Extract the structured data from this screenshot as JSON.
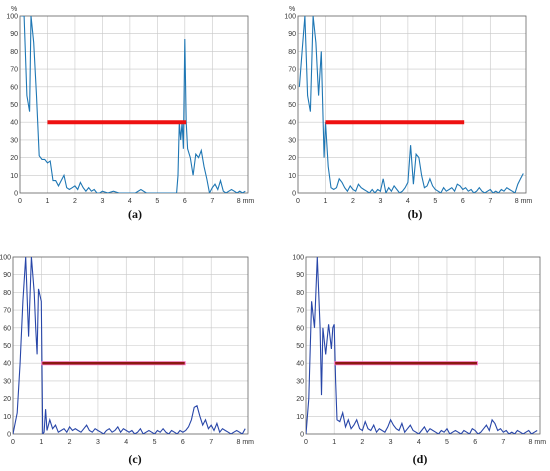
{
  "chart_data": [
    {
      "type": "line",
      "caption": "(a)",
      "ylabel": "%",
      "xunit": "8 mm",
      "xlim": [
        0,
        8.3
      ],
      "ylim": [
        0,
        100
      ],
      "xticks": [
        0,
        1,
        2,
        3,
        4,
        5,
        6,
        7
      ],
      "yticks": [
        0,
        10,
        20,
        30,
        40,
        50,
        60,
        70,
        80,
        90,
        100
      ],
      "grid": true,
      "colors": {
        "signal": "#1f77b4",
        "gate": "#ee1111",
        "gate_inner": "#ee1111"
      },
      "gate": {
        "x": [
          1.0,
          6.05
        ],
        "y": 40
      },
      "series": [
        {
          "x": [
            0.05,
            0.15,
            0.25,
            0.35,
            0.4,
            0.5,
            0.6,
            0.7,
            0.8,
            0.9,
            1.0,
            1.1,
            1.2,
            1.3,
            1.4,
            1.5,
            1.6,
            1.7,
            1.8,
            1.9,
            2.0,
            2.1,
            2.2,
            2.3,
            2.4,
            2.5,
            2.6,
            2.7,
            2.8,
            2.9,
            3.0,
            3.2,
            3.4,
            3.6,
            3.8,
            4.0,
            4.2,
            4.4,
            4.6,
            4.8,
            5.0,
            5.2,
            5.4,
            5.6,
            5.7,
            5.75,
            5.8,
            5.85,
            5.9,
            5.95,
            6.0,
            6.05,
            6.1,
            6.2,
            6.3,
            6.4,
            6.5,
            6.6,
            6.7,
            6.8,
            6.9,
            7.0,
            7.1,
            7.2,
            7.3,
            7.4,
            7.5,
            7.6,
            7.7,
            7.8,
            7.9,
            8.0,
            8.1,
            8.2
          ],
          "y": [
            100,
            100,
            55,
            46,
            100,
            85,
            55,
            21,
            19,
            19,
            17,
            18,
            7,
            7,
            4,
            7,
            10,
            3,
            2,
            3,
            4,
            2,
            6,
            3,
            1,
            3,
            1,
            2,
            0,
            0,
            1,
            0,
            1,
            0,
            0,
            0,
            0,
            2,
            0,
            0,
            0,
            0,
            0,
            0,
            0,
            10,
            40,
            30,
            40,
            25,
            87,
            40,
            25,
            20,
            10,
            22,
            20,
            24,
            15,
            8,
            0,
            3,
            5,
            2,
            7,
            1,
            0,
            1,
            2,
            1,
            0,
            1,
            0,
            1
          ]
        }
      ]
    },
    {
      "type": "line",
      "caption": "(b)",
      "ylabel": "%",
      "xunit": "8 mm",
      "xlim": [
        0,
        8.3
      ],
      "ylim": [
        0,
        100
      ],
      "xticks": [
        0,
        1,
        2,
        3,
        4,
        5,
        6,
        7
      ],
      "yticks": [
        0,
        10,
        20,
        30,
        40,
        50,
        60,
        70,
        80,
        90,
        100
      ],
      "grid": true,
      "colors": {
        "signal": "#1f77b4",
        "gate": "#ee1111",
        "gate_inner": "#ee1111"
      },
      "gate": {
        "x": [
          1.0,
          6.05
        ],
        "y": 40
      },
      "series": [
        {
          "x": [
            0.05,
            0.15,
            0.25,
            0.35,
            0.45,
            0.55,
            0.65,
            0.75,
            0.85,
            0.95,
            1.0,
            1.1,
            1.2,
            1.3,
            1.4,
            1.5,
            1.6,
            1.7,
            1.8,
            1.9,
            2.0,
            2.1,
            2.2,
            2.3,
            2.4,
            2.5,
            2.6,
            2.7,
            2.8,
            2.9,
            3.0,
            3.1,
            3.2,
            3.3,
            3.4,
            3.5,
            3.6,
            3.7,
            3.8,
            3.9,
            4.0,
            4.1,
            4.2,
            4.3,
            4.4,
            4.5,
            4.6,
            4.7,
            4.8,
            4.9,
            5.0,
            5.1,
            5.2,
            5.3,
            5.4,
            5.5,
            5.6,
            5.7,
            5.8,
            5.9,
            6.0,
            6.1,
            6.2,
            6.3,
            6.4,
            6.5,
            6.6,
            6.7,
            6.8,
            6.9,
            7.0,
            7.1,
            7.2,
            7.3,
            7.4,
            7.5,
            7.6,
            7.7,
            7.8,
            7.9,
            8.0,
            8.1,
            8.2
          ],
          "y": [
            60,
            80,
            100,
            55,
            46,
            100,
            85,
            55,
            80,
            20,
            40,
            15,
            3,
            2,
            3,
            8,
            6,
            3,
            1,
            4,
            2,
            1,
            5,
            3,
            2,
            1,
            0,
            2,
            0,
            2,
            1,
            8,
            0,
            3,
            1,
            4,
            2,
            0,
            1,
            3,
            6,
            27,
            5,
            22,
            20,
            10,
            3,
            4,
            8,
            4,
            2,
            1,
            0,
            3,
            1,
            2,
            3,
            1,
            5,
            4,
            2,
            3,
            1,
            2,
            0,
            1,
            3,
            1,
            0,
            1,
            2,
            0,
            1,
            0,
            2,
            1,
            3,
            2,
            1,
            0,
            5,
            8,
            11
          ]
        }
      ]
    },
    {
      "type": "line",
      "caption": "(c)",
      "ylabel": "",
      "xunit": "8 mm",
      "xlim": [
        0,
        8.3
      ],
      "ylim": [
        0,
        100
      ],
      "xticks": [
        0,
        1,
        2,
        3,
        4,
        5,
        6,
        7
      ],
      "yticks": [
        0,
        10,
        20,
        30,
        40,
        50,
        60,
        70,
        80,
        90,
        100
      ],
      "grid": true,
      "colors": {
        "signal": "#2846a8",
        "gate": "#ff77cc",
        "gate_inner": "#8b1a10"
      },
      "gate": {
        "x": [
          1.0,
          6.1
        ],
        "y": 40
      },
      "series": [
        {
          "x": [
            0.0,
            0.15,
            0.25,
            0.35,
            0.45,
            0.55,
            0.65,
            0.75,
            0.8,
            0.85,
            0.9,
            1.0,
            1.05,
            1.1,
            1.15,
            1.2,
            1.3,
            1.4,
            1.5,
            1.6,
            1.7,
            1.8,
            1.9,
            2.0,
            2.1,
            2.2,
            2.3,
            2.4,
            2.5,
            2.6,
            2.7,
            2.8,
            2.9,
            3.0,
            3.1,
            3.2,
            3.3,
            3.4,
            3.5,
            3.6,
            3.7,
            3.8,
            3.9,
            4.0,
            4.1,
            4.2,
            4.3,
            4.4,
            4.5,
            4.6,
            4.7,
            4.8,
            4.9,
            5.0,
            5.1,
            5.2,
            5.3,
            5.4,
            5.5,
            5.6,
            5.7,
            5.8,
            5.9,
            6.0,
            6.1,
            6.2,
            6.3,
            6.4,
            6.5,
            6.6,
            6.7,
            6.8,
            6.9,
            7.0,
            7.1,
            7.2,
            7.3,
            7.4,
            7.5,
            7.6,
            7.7,
            7.8,
            7.9,
            8.0,
            8.1,
            8.2
          ],
          "y": [
            0,
            12,
            40,
            75,
            100,
            55,
            100,
            80,
            60,
            45,
            82,
            75,
            0,
            1,
            14,
            2,
            8,
            3,
            5,
            1,
            2,
            3,
            1,
            4,
            2,
            3,
            2,
            1,
            3,
            5,
            2,
            1,
            3,
            2,
            1,
            0,
            2,
            3,
            1,
            2,
            4,
            1,
            3,
            2,
            1,
            2,
            0,
            1,
            3,
            0,
            1,
            2,
            1,
            0,
            2,
            1,
            3,
            1,
            0,
            2,
            1,
            0,
            2,
            1,
            2,
            4,
            8,
            15,
            16,
            10,
            5,
            8,
            3,
            5,
            2,
            6,
            1,
            3,
            2,
            1,
            0,
            1,
            2,
            1,
            0,
            3
          ]
        }
      ]
    },
    {
      "type": "line",
      "caption": "(d)",
      "ylabel": "",
      "xunit": "8 mm",
      "xlim": [
        0,
        8.3
      ],
      "ylim": [
        0,
        100
      ],
      "xticks": [
        0,
        1,
        2,
        3,
        4,
        5,
        6,
        7
      ],
      "yticks": [
        0,
        10,
        20,
        30,
        40,
        50,
        60,
        70,
        80,
        90,
        100
      ],
      "grid": true,
      "colors": {
        "signal": "#2846a8",
        "gate": "#ff77cc",
        "gate_inner": "#8b1a10"
      },
      "gate": {
        "x": [
          1.0,
          6.1
        ],
        "y": 40
      },
      "series": [
        {
          "x": [
            0.0,
            0.1,
            0.2,
            0.3,
            0.4,
            0.5,
            0.55,
            0.6,
            0.7,
            0.8,
            0.85,
            0.9,
            0.95,
            1.0,
            1.05,
            1.1,
            1.2,
            1.3,
            1.4,
            1.5,
            1.6,
            1.7,
            1.8,
            1.9,
            2.0,
            2.1,
            2.2,
            2.3,
            2.4,
            2.5,
            2.6,
            2.7,
            2.8,
            2.9,
            3.0,
            3.1,
            3.2,
            3.3,
            3.4,
            3.5,
            3.6,
            3.7,
            3.8,
            3.9,
            4.0,
            4.1,
            4.2,
            4.3,
            4.4,
            4.5,
            4.6,
            4.7,
            4.8,
            4.9,
            5.0,
            5.1,
            5.2,
            5.3,
            5.4,
            5.5,
            5.6,
            5.7,
            5.8,
            5.9,
            6.0,
            6.1,
            6.2,
            6.3,
            6.4,
            6.5,
            6.6,
            6.7,
            6.8,
            6.9,
            7.0,
            7.1,
            7.2,
            7.3,
            7.4,
            7.5,
            7.6,
            7.7,
            7.8,
            7.9,
            8.0,
            8.1,
            8.2
          ],
          "y": [
            0,
            20,
            75,
            60,
            100,
            60,
            22,
            60,
            45,
            62,
            55,
            48,
            60,
            62,
            30,
            8,
            7,
            12,
            4,
            8,
            3,
            5,
            8,
            3,
            2,
            7,
            3,
            2,
            5,
            1,
            3,
            2,
            1,
            4,
            8,
            5,
            3,
            2,
            6,
            1,
            3,
            5,
            2,
            1,
            0,
            2,
            4,
            1,
            3,
            2,
            1,
            0,
            2,
            1,
            3,
            0,
            1,
            2,
            1,
            0,
            2,
            1,
            0,
            3,
            2,
            0,
            1,
            3,
            5,
            2,
            8,
            6,
            2,
            3,
            1,
            2,
            0,
            1,
            0,
            2,
            1,
            0,
            1,
            2,
            0,
            1,
            2
          ]
        }
      ]
    }
  ]
}
